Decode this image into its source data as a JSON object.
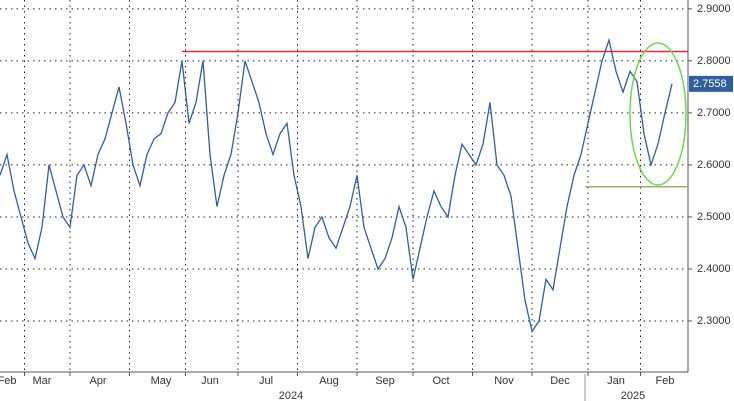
{
  "chart_data": {
    "type": "line",
    "categories": [
      null,
      "Feb",
      null,
      null,
      null,
      null,
      "Mar",
      null,
      null,
      null,
      null,
      null,
      null,
      null,
      "Apr",
      null,
      null,
      null,
      null,
      null,
      null,
      null,
      null,
      "May",
      null,
      null,
      null,
      null,
      null,
      null,
      "Jun",
      null,
      null,
      null,
      null,
      null,
      null,
      null,
      "Jul",
      null,
      null,
      null,
      null,
      null,
      null,
      null,
      null,
      "Aug",
      null,
      null,
      null,
      null,
      null,
      null,
      null,
      "Sep",
      null,
      null,
      null,
      null,
      null,
      null,
      null,
      "Oct",
      null,
      null,
      null,
      null,
      null,
      null,
      null,
      null,
      "Nov",
      null,
      null,
      null,
      null,
      null,
      null,
      null,
      "Dec",
      null,
      null,
      null,
      null,
      null,
      null,
      null,
      "Jan",
      null,
      null,
      null,
      null,
      null,
      null,
      "Feb",
      null
    ],
    "values": [
      2.58,
      2.62,
      2.55,
      2.5,
      2.45,
      2.42,
      2.48,
      2.6,
      2.55,
      2.5,
      2.48,
      2.58,
      2.6,
      2.56,
      2.62,
      2.65,
      2.7,
      2.75,
      2.68,
      2.6,
      2.56,
      2.62,
      2.65,
      2.66,
      2.7,
      2.72,
      2.8,
      2.68,
      2.72,
      2.8,
      2.62,
      2.52,
      2.58,
      2.62,
      2.7,
      2.8,
      2.76,
      2.72,
      2.66,
      2.62,
      2.66,
      2.68,
      2.58,
      2.52,
      2.42,
      2.48,
      2.5,
      2.46,
      2.44,
      2.48,
      2.52,
      2.58,
      2.48,
      2.44,
      2.4,
      2.42,
      2.46,
      2.52,
      2.48,
      2.38,
      2.44,
      2.5,
      2.55,
      2.52,
      2.5,
      2.58,
      2.64,
      2.62,
      2.6,
      2.64,
      2.72,
      2.6,
      2.58,
      2.54,
      2.44,
      2.34,
      2.28,
      2.3,
      2.38,
      2.36,
      2.44,
      2.52,
      2.58,
      2.62,
      2.68,
      2.74,
      2.8,
      2.84,
      2.78,
      2.74,
      2.78,
      2.76,
      2.66,
      2.6,
      2.64,
      2.7,
      2.7558
    ],
    "color": "#2f5f9f",
    "ylim": [
      2.202,
      2.917
    ],
    "yticks": [
      {
        "value": 2.3,
        "label": "2.3000"
      },
      {
        "value": 2.4,
        "label": "2.4000"
      },
      {
        "value": 2.5,
        "label": "2.5000"
      },
      {
        "value": 2.6,
        "label": "2.6000"
      },
      {
        "value": 2.7,
        "label": "2.7000"
      },
      {
        "value": 2.8,
        "label": "2.8000"
      },
      {
        "value": 2.9,
        "label": "2.9000"
      }
    ],
    "year_labels": [
      "2024",
      "2025"
    ],
    "reference_lines": [
      {
        "value": 2.818,
        "color": "#e03030"
      },
      {
        "value": 2.558,
        "color": "#a8a870"
      }
    ],
    "highlight_color": "#66dd44",
    "grid": true
  }
}
